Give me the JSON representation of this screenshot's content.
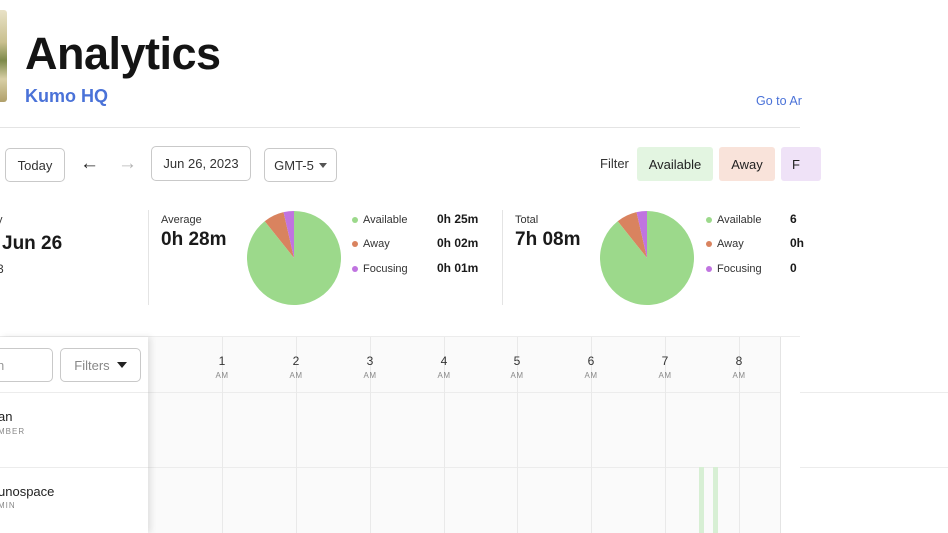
{
  "header": {
    "title": "Analytics",
    "org": "Kumo HQ",
    "goto_link": "Go to Ar"
  },
  "toolbar": {
    "today_label": "Today",
    "prev_icon": "arrow-left-icon",
    "next_icon": "arrow-right-icon",
    "date_value": "Jun 26, 2023",
    "timezone_value": "GMT-5",
    "filter_label": "Filter",
    "filter_chips": [
      {
        "label": "Available",
        "color": "#e3f5e1"
      },
      {
        "label": "Away",
        "color": "#f9e3da"
      },
      {
        "label": "F",
        "color": "#efe2f7"
      }
    ]
  },
  "stats": {
    "day": {
      "label": "y",
      "value": "Jun 26",
      "extra": "3"
    },
    "average": {
      "label": "Average",
      "value": "0h 28m",
      "legend": [
        {
          "name": "Available",
          "value": "0h 25m",
          "color": "#9cd98b"
        },
        {
          "name": "Away",
          "value": "0h 02m",
          "color": "#d9835f"
        },
        {
          "name": "Focusing",
          "value": "0h 01m",
          "color": "#c074e0"
        }
      ]
    },
    "total": {
      "label": "Total",
      "value": "7h 08m",
      "legend": [
        {
          "name": "Available",
          "value": "6",
          "color": "#9cd98b"
        },
        {
          "name": "Away",
          "value": "0h",
          "color": "#d9835f"
        },
        {
          "name": "Focusing",
          "value": "0",
          "color": "#c074e0"
        }
      ]
    }
  },
  "timeline": {
    "search_placeholder": "h",
    "filters_label": "Filters",
    "hours": [
      {
        "num": "1",
        "ampm": "AM"
      },
      {
        "num": "2",
        "ampm": "AM"
      },
      {
        "num": "3",
        "ampm": "AM"
      },
      {
        "num": "4",
        "ampm": "AM"
      },
      {
        "num": "5",
        "ampm": "AM"
      },
      {
        "num": "6",
        "ampm": "AM"
      },
      {
        "num": "7",
        "ampm": "AM"
      },
      {
        "num": "8",
        "ampm": "AM"
      }
    ],
    "members": [
      {
        "name": "an",
        "role": "MBER"
      },
      {
        "name": "unospace",
        "role": "MIN"
      }
    ]
  }
}
